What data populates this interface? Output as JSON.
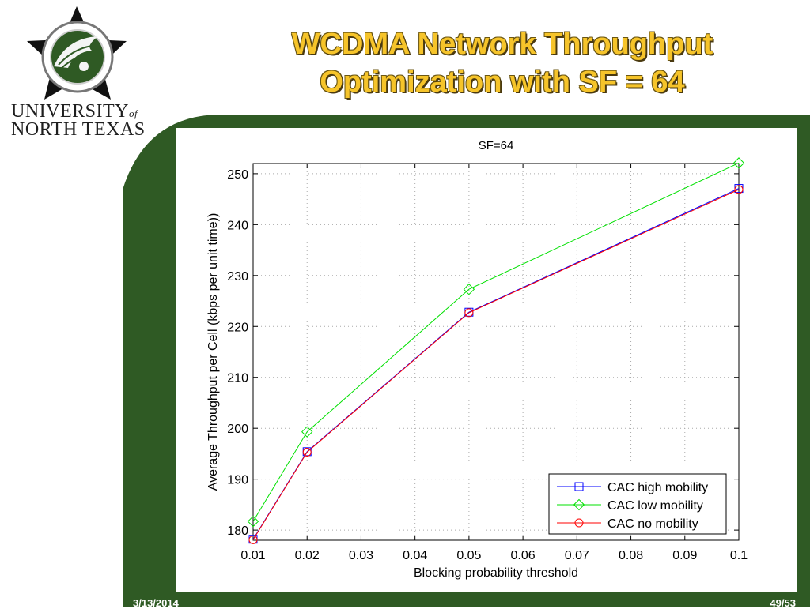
{
  "header": {
    "title_line1": "WCDMA Network Throughput",
    "title_line2": "Optimization with SF = 64",
    "university_line1_a": "UNIVERSITY",
    "university_of": "of",
    "university_line2": "NORTH TEXAS",
    "logo_icon": "unt-eagle-star-seal-icon"
  },
  "footer": {
    "date": "3/13/2014",
    "page": "49/53"
  },
  "colors": {
    "slide_green": "#2f5a24",
    "title_gold": "#f6c42a",
    "high_mobility": "#0000ff",
    "low_mobility": "#00e000",
    "no_mobility": "#ff0000"
  },
  "chart_data": {
    "type": "line",
    "title": "SF=64",
    "xlabel": "Blocking probability threshold",
    "ylabel": "Average Throughput per Cell (kbps per unit time))",
    "xlim": [
      0.01,
      0.1
    ],
    "ylim": [
      178,
      252
    ],
    "xticks": [
      0.01,
      0.02,
      0.03,
      0.04,
      0.05,
      0.06,
      0.07,
      0.08,
      0.09,
      0.1
    ],
    "xtick_labels": [
      "0.01",
      "0.02",
      "0.03",
      "0.04",
      "0.05",
      "0.06",
      "0.07",
      "0.08",
      "0.09",
      "0.1"
    ],
    "yticks": [
      180,
      190,
      200,
      210,
      220,
      230,
      240,
      250
    ],
    "ytick_labels": [
      "180",
      "190",
      "200",
      "210",
      "220",
      "230",
      "240",
      "250"
    ],
    "grid": true,
    "legend_position": "bottom-right",
    "x": [
      0.01,
      0.02,
      0.05,
      0.1
    ],
    "series": [
      {
        "name": "CAC high mobility",
        "color": "#0000ff",
        "marker": "square",
        "values": [
          178.2,
          195.4,
          222.8,
          247.1
        ]
      },
      {
        "name": "CAC low mobility",
        "color": "#00e000",
        "marker": "diamond",
        "values": [
          181.7,
          199.3,
          227.3,
          252.1
        ]
      },
      {
        "name": "CAC no mobility",
        "color": "#ff0000",
        "marker": "circle",
        "values": [
          178.1,
          195.3,
          222.7,
          246.9
        ]
      }
    ]
  }
}
